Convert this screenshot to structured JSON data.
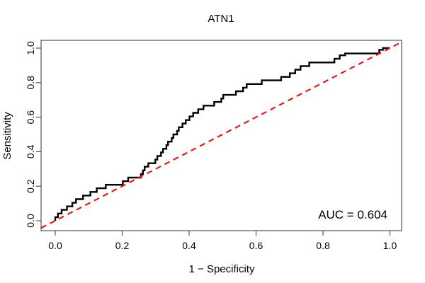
{
  "figure": {
    "title": "ATN1",
    "annotation": "AUC = 0.604",
    "colors": {
      "curve": "#000000",
      "diagonal": "#ff0000",
      "axis": "#555555",
      "text": "#000000",
      "background": "#ffffff"
    }
  },
  "chart_data": {
    "type": "line",
    "subtype": "roc-curve",
    "title": "ATN1",
    "xlabel": "1 − Specificity",
    "ylabel": "Sensitivity",
    "xlim": [
      -0.042,
      1.035
    ],
    "ylim": [
      -0.058,
      1.045
    ],
    "x_ticks": [
      0.0,
      0.2,
      0.4,
      0.6,
      0.8,
      1.0
    ],
    "y_ticks": [
      0.0,
      0.2,
      0.4,
      0.6,
      0.8,
      1.0
    ],
    "x_tick_labels": [
      "0.0",
      "0.2",
      "0.4",
      "0.6",
      "0.8",
      "1.0"
    ],
    "y_tick_labels": [
      "0.0",
      "0.2",
      "0.4",
      "0.6",
      "0.8",
      "1.0"
    ],
    "grid": false,
    "legend": null,
    "auc": 0.604,
    "annotations": [
      {
        "text": "AUC = 0.604",
        "x": 0.992,
        "y": 0.012,
        "align": "right"
      }
    ],
    "series": [
      {
        "name": "ROC curve",
        "draw": "polyline",
        "color": "#000000",
        "width": 2.4,
        "dash": "solid",
        "points": [
          [
            0.0,
            0.0
          ],
          [
            0.0,
            0.021
          ],
          [
            0.008,
            0.021
          ],
          [
            0.008,
            0.042
          ],
          [
            0.019,
            0.042
          ],
          [
            0.019,
            0.063
          ],
          [
            0.035,
            0.063
          ],
          [
            0.035,
            0.083
          ],
          [
            0.051,
            0.083
          ],
          [
            0.051,
            0.104
          ],
          [
            0.062,
            0.104
          ],
          [
            0.062,
            0.125
          ],
          [
            0.083,
            0.125
          ],
          [
            0.083,
            0.146
          ],
          [
            0.105,
            0.146
          ],
          [
            0.105,
            0.167
          ],
          [
            0.124,
            0.167
          ],
          [
            0.124,
            0.188
          ],
          [
            0.151,
            0.188
          ],
          [
            0.151,
            0.208
          ],
          [
            0.202,
            0.208
          ],
          [
            0.202,
            0.229
          ],
          [
            0.218,
            0.229
          ],
          [
            0.218,
            0.25
          ],
          [
            0.256,
            0.25
          ],
          [
            0.256,
            0.271
          ],
          [
            0.262,
            0.271
          ],
          [
            0.262,
            0.292
          ],
          [
            0.267,
            0.292
          ],
          [
            0.267,
            0.313
          ],
          [
            0.278,
            0.313
          ],
          [
            0.278,
            0.333
          ],
          [
            0.299,
            0.333
          ],
          [
            0.299,
            0.354
          ],
          [
            0.305,
            0.354
          ],
          [
            0.305,
            0.375
          ],
          [
            0.316,
            0.375
          ],
          [
            0.316,
            0.396
          ],
          [
            0.322,
            0.396
          ],
          [
            0.322,
            0.417
          ],
          [
            0.332,
            0.417
          ],
          [
            0.332,
            0.438
          ],
          [
            0.337,
            0.438
          ],
          [
            0.337,
            0.458
          ],
          [
            0.348,
            0.458
          ],
          [
            0.348,
            0.479
          ],
          [
            0.353,
            0.479
          ],
          [
            0.353,
            0.5
          ],
          [
            0.364,
            0.5
          ],
          [
            0.364,
            0.521
          ],
          [
            0.369,
            0.521
          ],
          [
            0.369,
            0.542
          ],
          [
            0.38,
            0.542
          ],
          [
            0.38,
            0.563
          ],
          [
            0.39,
            0.563
          ],
          [
            0.39,
            0.583
          ],
          [
            0.401,
            0.583
          ],
          [
            0.401,
            0.604
          ],
          [
            0.412,
            0.604
          ],
          [
            0.412,
            0.625
          ],
          [
            0.427,
            0.625
          ],
          [
            0.427,
            0.646
          ],
          [
            0.443,
            0.646
          ],
          [
            0.443,
            0.667
          ],
          [
            0.475,
            0.667
          ],
          [
            0.475,
            0.688
          ],
          [
            0.496,
            0.688
          ],
          [
            0.496,
            0.708
          ],
          [
            0.502,
            0.708
          ],
          [
            0.502,
            0.729
          ],
          [
            0.54,
            0.729
          ],
          [
            0.54,
            0.75
          ],
          [
            0.561,
            0.75
          ],
          [
            0.561,
            0.771
          ],
          [
            0.572,
            0.771
          ],
          [
            0.572,
            0.792
          ],
          [
            0.617,
            0.792
          ],
          [
            0.617,
            0.813
          ],
          [
            0.675,
            0.813
          ],
          [
            0.675,
            0.833
          ],
          [
            0.701,
            0.833
          ],
          [
            0.701,
            0.854
          ],
          [
            0.717,
            0.854
          ],
          [
            0.717,
            0.875
          ],
          [
            0.733,
            0.875
          ],
          [
            0.733,
            0.896
          ],
          [
            0.759,
            0.896
          ],
          [
            0.759,
            0.917
          ],
          [
            0.834,
            0.917
          ],
          [
            0.834,
            0.938
          ],
          [
            0.85,
            0.938
          ],
          [
            0.85,
            0.958
          ],
          [
            0.866,
            0.958
          ],
          [
            0.866,
            0.969
          ],
          [
            0.968,
            0.969
          ],
          [
            0.968,
            0.99
          ],
          [
            0.979,
            0.99
          ],
          [
            0.979,
            1.0
          ],
          [
            1.0,
            1.0
          ]
        ]
      },
      {
        "name": "Reference diagonal",
        "draw": "polyline",
        "color": "#ff0000",
        "width": 2,
        "dash": "dashed",
        "points": [
          [
            -0.042,
            -0.042
          ],
          [
            1.035,
            1.035
          ]
        ]
      }
    ]
  }
}
